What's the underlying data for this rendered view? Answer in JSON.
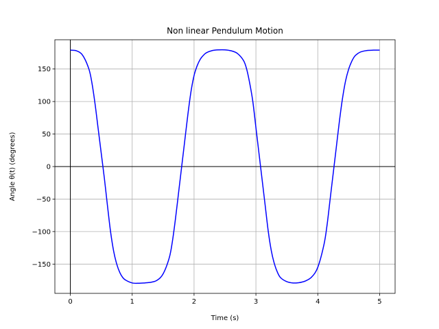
{
  "chart_data": {
    "type": "line",
    "title": "Non linear Pendulum Motion",
    "xlabel": "Time (s)",
    "ylabel": "Angle θ(t) (degrees)",
    "xlim": [
      -0.25,
      5.25
    ],
    "ylim": [
      -195,
      195
    ],
    "x_ticks": [
      0,
      1,
      2,
      3,
      4,
      5
    ],
    "y_ticks": [
      -150,
      -100,
      -50,
      0,
      50,
      100,
      150
    ],
    "x_tick_labels": [
      "0",
      "1",
      "2",
      "3",
      "4",
      "5"
    ],
    "y_tick_labels": [
      "−150",
      "−100",
      "−50",
      "0",
      "50",
      "100",
      "150"
    ],
    "grid": true,
    "reference_lines": {
      "x": 0,
      "y": 0
    },
    "series": [
      {
        "color": "#0000ff",
        "x": [
          0,
          0.1,
          0.2,
          0.3,
          0.35,
          0.4,
          0.45,
          0.5,
          0.55,
          0.6,
          0.65,
          0.7,
          0.75,
          0.8,
          0.85,
          0.9,
          1.0,
          1.1,
          1.2,
          1.25,
          1.3,
          1.4,
          1.5,
          1.6,
          1.65,
          1.7,
          1.75,
          1.8,
          1.85,
          1.9,
          1.95,
          2.0,
          2.05,
          2.1,
          2.15,
          2.2,
          2.3,
          2.4,
          2.5,
          2.6,
          2.7,
          2.8,
          2.85,
          2.9,
          2.95,
          3.0,
          3.05,
          3.1,
          3.15,
          3.2,
          3.25,
          3.3,
          3.35,
          3.4,
          3.5,
          3.6,
          3.7,
          3.75,
          3.8,
          3.9,
          4.0,
          4.1,
          4.15,
          4.2,
          4.25,
          4.3,
          4.35,
          4.4,
          4.45,
          4.5,
          4.55,
          4.6,
          4.65,
          4.7,
          4.8,
          4.9,
          5.0
        ],
        "y": [
          179,
          178,
          171,
          150,
          128,
          96,
          58,
          20,
          -18,
          -60,
          -100,
          -130,
          -150,
          -163,
          -171,
          -175,
          -179,
          -179.5,
          -179,
          -178.5,
          -178,
          -175,
          -165,
          -140,
          -115,
          -80,
          -40,
          0,
          40,
          80,
          115,
          140,
          155,
          165,
          171,
          175,
          178.5,
          179.5,
          179.5,
          178,
          174,
          163,
          150,
          128,
          100,
          60,
          20,
          -20,
          -60,
          -100,
          -130,
          -150,
          -163,
          -171,
          -177,
          -179,
          -178.5,
          -177.5,
          -176,
          -170,
          -155,
          -120,
          -90,
          -50,
          -10,
          30,
          70,
          105,
          132,
          150,
          162,
          170,
          174,
          176.5,
          178.5,
          179,
          179
        ]
      }
    ]
  }
}
